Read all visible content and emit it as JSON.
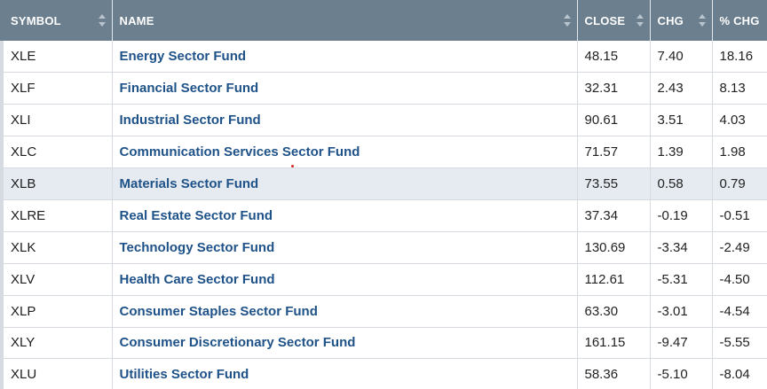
{
  "table": {
    "headers": {
      "symbol": "SYMBOL",
      "name": "NAME",
      "close": "CLOSE",
      "chg": "CHG",
      "pct_chg": "% CHG"
    },
    "rows": [
      {
        "symbol": "XLE",
        "name": "Energy Sector Fund",
        "close": "48.15",
        "chg": "7.40",
        "pct": "18.16",
        "highlighted": false
      },
      {
        "symbol": "XLF",
        "name": "Financial Sector Fund",
        "close": "32.31",
        "chg": "2.43",
        "pct": "8.13",
        "highlighted": false
      },
      {
        "symbol": "XLI",
        "name": "Industrial Sector Fund",
        "close": "90.61",
        "chg": "3.51",
        "pct": "4.03",
        "highlighted": false
      },
      {
        "symbol": "XLC",
        "name": "Communication Services Sector Fund",
        "close": "71.57",
        "chg": "1.39",
        "pct": "1.98",
        "highlighted": false
      },
      {
        "symbol": "XLB",
        "name": "Materials Sector Fund",
        "close": "73.55",
        "chg": "0.58",
        "pct": "0.79",
        "highlighted": true
      },
      {
        "symbol": "XLRE",
        "name": "Real Estate Sector Fund",
        "close": "37.34",
        "chg": "-0.19",
        "pct": "-0.51",
        "highlighted": false
      },
      {
        "symbol": "XLK",
        "name": "Technology Sector Fund",
        "close": "130.69",
        "chg": "-3.34",
        "pct": "-2.49",
        "highlighted": false
      },
      {
        "symbol": "XLV",
        "name": "Health Care Sector Fund",
        "close": "112.61",
        "chg": "-5.31",
        "pct": "-4.50",
        "highlighted": false
      },
      {
        "symbol": "XLP",
        "name": "Consumer Staples Sector Fund",
        "close": "63.30",
        "chg": "-3.01",
        "pct": "-4.54",
        "highlighted": false
      },
      {
        "symbol": "XLY",
        "name": "Consumer Discretionary Sector Fund",
        "close": "161.15",
        "chg": "-9.47",
        "pct": "-5.55",
        "highlighted": false
      },
      {
        "symbol": "XLU",
        "name": "Utilities Sector Fund",
        "close": "58.36",
        "chg": "-5.10",
        "pct": "-8.04",
        "highlighted": false
      }
    ]
  },
  "colors": {
    "header_bg": "#6c7f8e",
    "link": "#1e5288",
    "row_highlight": "#e6ebf1"
  }
}
